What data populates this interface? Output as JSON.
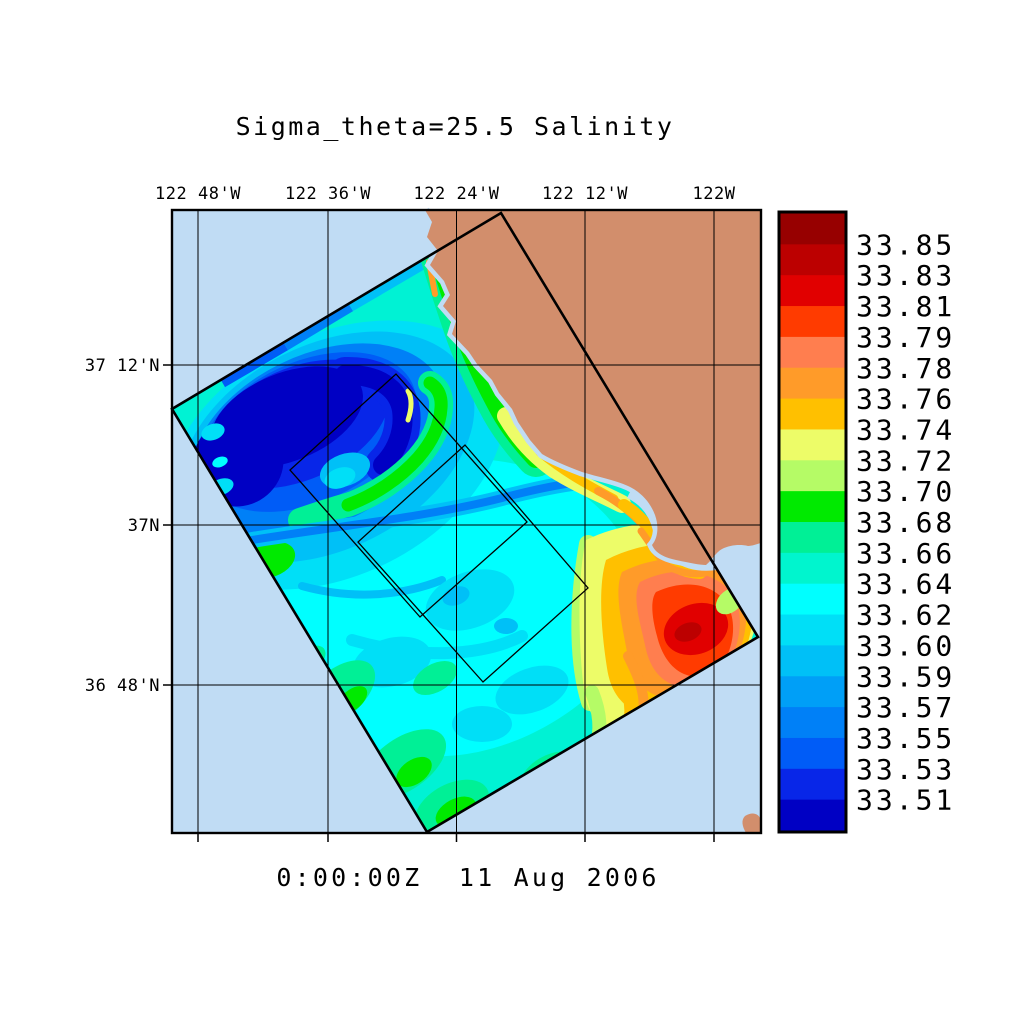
{
  "title": "Sigma_theta=25.5 Salinity",
  "time_label": "0:00:00Z  11 Aug 2006",
  "axes": {
    "x_tick_labels": [
      "122 48'W",
      "122 36'W",
      "122 24'W",
      "122 12'W",
      "122W"
    ],
    "y_tick_labels": [
      "37 12'N",
      "37N",
      "36 48'N"
    ]
  },
  "colorbar": {
    "tick_labels_top_to_bottom": [
      "33.85",
      "33.83",
      "33.81",
      "33.79",
      "33.78",
      "33.76",
      "33.74",
      "33.72",
      "33.70",
      "33.68",
      "33.66",
      "33.64",
      "33.62",
      "33.60",
      "33.59",
      "33.57",
      "33.55",
      "33.53",
      "33.51"
    ],
    "band_colors_top_to_bottom": [
      "#970000",
      "#BC0000",
      "#E10000",
      "#FF3B00",
      "#FF7E4F",
      "#FF9B29",
      "#FFC000",
      "#EDFC68",
      "#B5FB66",
      "#00EA00",
      "#00F096",
      "#00F5CE",
      "#00FFFF",
      "#00DFF7",
      "#00C0F7",
      "#009FF7",
      "#0080F7",
      "#005CF7",
      "#0826E8",
      "#0000C4"
    ]
  },
  "colors": {
    "land": "#D28E6C",
    "ocean_background": "#C0DCF4",
    "frame": "#000000",
    "page": "#FFFFFF"
  },
  "chart_data": {
    "type": "heatmap",
    "title": "Sigma_theta=25.5 Salinity",
    "time_label": "0:00:00Z  11 Aug 2006",
    "variable": "salinity on the sigma_theta=25.5 isopycnal surface",
    "region": "California coast near Monterey Bay",
    "x_tick_labels": [
      "122 48'W",
      "122 36'W",
      "122 24'W",
      "122 12'W",
      "122W"
    ],
    "y_tick_labels": [
      "37 12'N",
      "37N",
      "36 48'N"
    ],
    "colorbar_levels_ascending": [
      33.51,
      33.53,
      33.55,
      33.57,
      33.59,
      33.6,
      33.62,
      33.64,
      33.66,
      33.68,
      33.7,
      33.72,
      33.74,
      33.76,
      33.78,
      33.79,
      33.81,
      33.83,
      33.85
    ],
    "colorbar_colors_low_to_high": [
      "#0000C4",
      "#0826E8",
      "#005CF7",
      "#0080F7",
      "#009FF7",
      "#00C0F7",
      "#00DFF7",
      "#00FFFF",
      "#00F5CE",
      "#00F096",
      "#00EA00",
      "#B5FB66",
      "#EDFC68",
      "#FFC000",
      "#FF9B29",
      "#FF7E4F",
      "#FF3B00",
      "#E10000",
      "#BC0000",
      "#970000"
    ],
    "legend_position": "right",
    "grid": true,
    "overlays": [
      "rotated model-domain rectangle outlined in bold black",
      "two nested thin-outlined inner domain rectangles",
      "latitude-longitude grid lines",
      "tan land mask of the coastline",
      "light-blue background where no model data"
    ],
    "features": [
      {
        "name": "low-salinity cyclonic eddy",
        "approx_value": "<= 33.51",
        "location": "upper-left of model domain near 122 40'W, 37 05'N"
      },
      {
        "name": "high-salinity coastal plume",
        "approx_value": "~33.85",
        "location": "right corner of domain, south of Monterey Bay"
      },
      {
        "name": "coastal band of elevated salinity",
        "approx_value": "33.72-33.80",
        "location": "along coast from ~37 10'N southward"
      },
      {
        "name": "ambient open-ocean salinity",
        "approx_value": "33.60-33.66",
        "location": "central and southern domain"
      },
      {
        "name": "green moderate-salinity patches",
        "approx_value": "33.66-33.70",
        "location": "southern domain edge and eddy rim"
      }
    ]
  }
}
